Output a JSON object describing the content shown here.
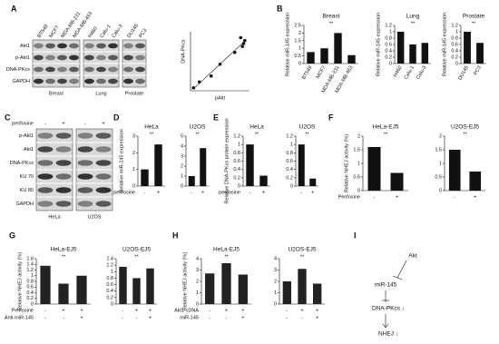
{
  "panel_labels": [
    "A",
    "B",
    "C",
    "D",
    "E",
    "F",
    "G",
    "H",
    "I"
  ],
  "blots": {
    "A": {
      "rows": [
        "Akt1",
        "p-Akt1",
        "DNA-PKcs",
        "GAPDH"
      ],
      "groups": [
        {
          "name": "Breast",
          "lanes": [
            "BT549",
            "MCF7",
            "MDA-MB-231",
            "MDA-MB-453"
          ]
        },
        {
          "name": "Lung",
          "lanes": [
            "H460",
            "Calu-1",
            "Calu-3"
          ]
        },
        {
          "name": "Prostate",
          "lanes": [
            "DU145",
            "PC3"
          ]
        }
      ]
    },
    "C": {
      "treatment": "perifosine",
      "rows": [
        "p-Akt1",
        "Akt1",
        "DNA-PKcs",
        "KU 70",
        "KU 80",
        "GAPDH"
      ],
      "groups": [
        {
          "name": "HeLa",
          "lanes": [
            "-",
            "+"
          ]
        },
        {
          "name": "U2OS",
          "lanes": [
            "-",
            "+"
          ]
        }
      ]
    }
  },
  "diagram": {
    "nodes": [
      "Akt",
      "miR-145",
      "DNA-PKcs ↓",
      "NHEJ ↓"
    ]
  },
  "chart_data": [
    {
      "type": "scatter",
      "xlabel": "pAkt",
      "ylabel": "DNA-PKcs",
      "x": [
        0.05,
        0.15,
        0.35,
        0.5,
        0.75,
        0.85,
        0.9,
        0.88,
        0.92
      ],
      "y": [
        0.05,
        0.15,
        0.25,
        0.45,
        0.65,
        0.9,
        0.8,
        0.75,
        0.85
      ],
      "xlim": [
        0,
        1
      ],
      "ylim": [
        0,
        1
      ],
      "color": "#111111",
      "trendline": true
    },
    {
      "type": "bar",
      "title": "Breast",
      "ylabel": "Relative miR-145 expression",
      "categories": [
        "BT549",
        "MCF7",
        "MDA-MB-231",
        "MDA-MB-453"
      ],
      "values": [
        0.75,
        1.0,
        2.0,
        0.55
      ],
      "ylim": [
        0,
        2.5
      ],
      "yticks": [
        0,
        0.5,
        1,
        1.5,
        2,
        2.5
      ],
      "color": "#111111",
      "rotate_labels": true,
      "annotations": [
        "**"
      ]
    },
    {
      "type": "bar",
      "title": "Lung",
      "ylabel": "Relative miR-145 expression",
      "categories": [
        "H460",
        "Calu-1",
        "Calu-3"
      ],
      "values": [
        1.0,
        0.6,
        0.65
      ],
      "ylim": [
        0,
        1.2
      ],
      "yticks": [
        0,
        0.2,
        0.4,
        0.6,
        0.8,
        1,
        1.2
      ],
      "color": "#111111",
      "rotate_labels": true,
      "annotations": [
        "**"
      ]
    },
    {
      "type": "bar",
      "title": "Prostate",
      "ylabel": "Relative miR-145 expression",
      "categories": [
        "DU145",
        "PC3"
      ],
      "values": [
        1.0,
        0.65
      ],
      "ylim": [
        0,
        1.2
      ],
      "yticks": [
        0,
        0.2,
        0.4,
        0.6,
        0.8,
        1,
        1.2
      ],
      "color": "#111111",
      "rotate_labels": true,
      "annotations": [
        "**"
      ]
    },
    {
      "type": "bar",
      "title": "HeLa",
      "ylabel": "Relative miR-145 expression",
      "xlabel": "perifosine",
      "categories": [
        "-",
        "+"
      ],
      "values": [
        1.0,
        2.5
      ],
      "ylim": [
        0,
        3
      ],
      "yticks": [
        0,
        1,
        2,
        3
      ],
      "color": "#111111",
      "annotations": [
        "**"
      ]
    },
    {
      "type": "bar",
      "title": "U2OS",
      "categories": [
        "-",
        "+"
      ],
      "values": [
        1.0,
        3.8
      ],
      "ylim": [
        0,
        5
      ],
      "yticks": [
        0,
        1,
        2,
        3,
        4,
        5
      ],
      "color": "#111111",
      "annotations": [
        "**"
      ]
    },
    {
      "type": "bar",
      "title": "HeLa",
      "ylabel": "Relative DNA-PKcs protein expression",
      "xlabel": "perifosine",
      "categories": [
        "-",
        "+"
      ],
      "values": [
        1.0,
        0.25
      ],
      "ylim": [
        0,
        1.2
      ],
      "yticks": [
        0,
        0.2,
        0.4,
        0.6,
        0.8,
        1,
        1.2
      ],
      "color": "#111111",
      "annotations": [
        "**"
      ]
    },
    {
      "type": "bar",
      "title": "U2OS",
      "categories": [
        "-",
        "+"
      ],
      "values": [
        1.0,
        0.18
      ],
      "ylim": [
        0,
        1.2
      ],
      "yticks": [
        0,
        0.2,
        0.4,
        0.6,
        0.8,
        1,
        1.2
      ],
      "color": "#111111",
      "annotations": [
        "**"
      ]
    },
    {
      "type": "bar",
      "title": "HeLa-EJ5",
      "ylabel": "Relative NHEJ activity (%)",
      "xlabel": "Perifosine",
      "categories": [
        "-",
        "+"
      ],
      "values": [
        1.6,
        0.65
      ],
      "ylim": [
        0,
        2
      ],
      "yticks": [
        0,
        0.5,
        1,
        1.5,
        2
      ],
      "color": "#111111",
      "annotations": [
        "**"
      ]
    },
    {
      "type": "bar",
      "title": "U2OS-EJ5",
      "categories": [
        "-",
        "+"
      ],
      "values": [
        1.5,
        0.7
      ],
      "ylim": [
        0,
        2
      ],
      "yticks": [
        0,
        0.5,
        1,
        1.5,
        2
      ],
      "color": "#111111",
      "annotations": [
        "**"
      ]
    },
    {
      "type": "bar",
      "title": "HeLa-EJ5",
      "ylabel": "Relative NHEJ activity (%)",
      "conditions": [
        {
          "name": "Perifosine",
          "values": [
            "-",
            "+",
            "+"
          ]
        },
        {
          "name": "Anti-miR-145",
          "values": [
            "-",
            "-",
            "+"
          ]
        }
      ],
      "values": [
        1.35,
        0.72,
        1.0
      ],
      "ylim": [
        0,
        1.6
      ],
      "yticks": [
        0,
        0.2,
        0.4,
        0.6,
        0.8,
        1,
        1.2,
        1.4,
        1.6
      ],
      "color": "#222222",
      "annotations": [
        "**"
      ]
    },
    {
      "type": "bar",
      "title": "U2OS-EJ5",
      "conditions": [
        {
          "values": [
            "-",
            "+",
            "+"
          ]
        },
        {
          "values": [
            "-",
            "-",
            "+"
          ]
        }
      ],
      "values": [
        1.15,
        0.8,
        1.1
      ],
      "ylim": [
        0,
        1.4
      ],
      "yticks": [
        0,
        0.2,
        0.4,
        0.6,
        0.8,
        1,
        1.2,
        1.4
      ],
      "color": "#222222",
      "annotations": [
        "**"
      ]
    },
    {
      "type": "bar",
      "title": "HeLa-EJ5",
      "ylabel": "Relative NHEJ activity (%)",
      "conditions": [
        {
          "name": "Akt1 cDNA",
          "values": [
            "-",
            "+",
            "+"
          ]
        },
        {
          "name": "miR-145",
          "values": [
            "-",
            "-",
            "+"
          ]
        }
      ],
      "values": [
        2.7,
        3.6,
        2.6
      ],
      "ylim": [
        0,
        4
      ],
      "yticks": [
        0,
        1,
        2,
        3,
        4
      ],
      "color": "#222222",
      "annotations": [
        "**"
      ]
    },
    {
      "type": "bar",
      "title": "U2OS-EJ5",
      "conditions": [
        {
          "values": [
            "-",
            "+",
            "+"
          ]
        },
        {
          "values": [
            "-",
            "-",
            "+"
          ]
        }
      ],
      "values": [
        2.0,
        3.1,
        1.8
      ],
      "ylim": [
        0,
        4
      ],
      "yticks": [
        0,
        1,
        2,
        3,
        4
      ],
      "color": "#222222",
      "annotations": [
        "**"
      ]
    }
  ]
}
